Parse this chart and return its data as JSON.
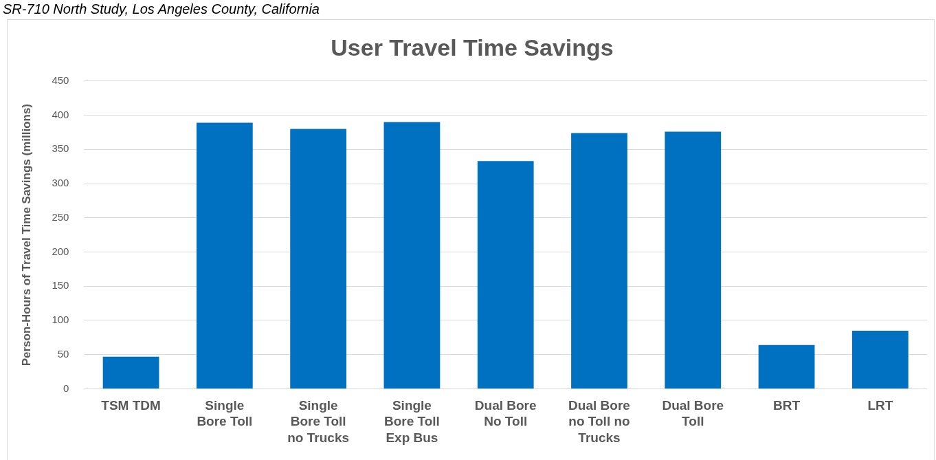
{
  "chart_data": {
    "type": "bar",
    "title": "User Travel Time Savings",
    "ylabel": "Person-Hours of Travel Time Savings (millions)",
    "annotations": [
      "SR-710 North Study, Los Angeles County, California"
    ],
    "categories": [
      "TSM TDM",
      "Single Bore Toll",
      "Single Bore Toll no Trucks",
      "Single Bore Toll Exp Bus",
      "Dual Bore No Toll",
      "Dual Bore no Toll no Trucks",
      "Dual Bore Toll",
      "BRT",
      "LRT"
    ],
    "values": [
      47,
      389,
      380,
      390,
      333,
      374,
      376,
      64,
      85
    ],
    "color": "#0070c0",
    "ylim": [
      0,
      450
    ],
    "yticks": [
      0,
      50,
      100,
      150,
      200,
      250,
      300,
      350,
      400,
      450
    ],
    "grid": "y"
  }
}
